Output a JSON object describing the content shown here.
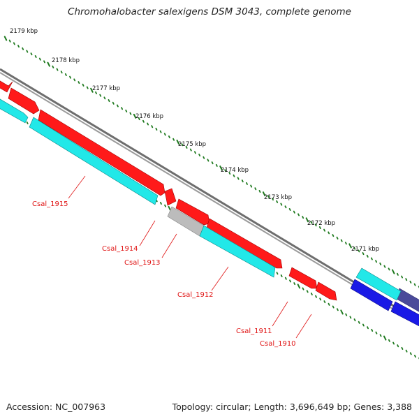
{
  "title": "Chromohalobacter salexigens DSM 3043, complete genome",
  "footer": {
    "accession": "Accession: NC_007963",
    "summary": "Topology: circular; Length: 3,696,649 bp; Genes: 3,388"
  },
  "scale": {
    "unit": "kbp",
    "major_labels": [
      "2179 kbp",
      "2178 kbp",
      "2177 kbp",
      "2176 kbp",
      "2175 kbp",
      "2174 kbp",
      "2173 kbp",
      "2172 kbp",
      "2171 kbp"
    ]
  },
  "colors": {
    "forward_cds": "#ff1a1a",
    "reverse_cds": "#22e8e8",
    "other_feature": "#bcbcbc",
    "dark_blue_feature": "#1a1ae6",
    "slate_feature": "#4a4a9a",
    "backbone": "#8a8a8a",
    "tick": "#1f7a1f",
    "label_text": "#e01414"
  },
  "gene_labels": [
    "Csal_1915",
    "Csal_1914",
    "Csal_1913",
    "Csal_1912",
    "Csal_1911",
    "Csal_1910"
  ]
}
